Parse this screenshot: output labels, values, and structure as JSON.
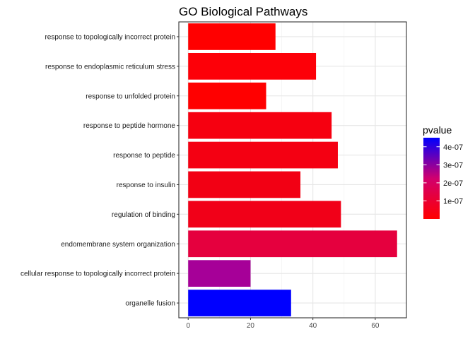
{
  "chart_data": {
    "type": "bar",
    "orientation": "horizontal",
    "title": "GO Biological Pathways",
    "xlabel": "",
    "ylabel": "",
    "xlim": [
      -3,
      70
    ],
    "x_ticks": [
      0,
      20,
      40,
      60
    ],
    "grid": true,
    "categories": [
      "response to topologically incorrect protein",
      "response to endoplasmic reticulum stress",
      "response to unfolded protein",
      "response to peptide hormone",
      "response to peptide",
      "response to insulin",
      "regulation of binding",
      "endomembrane system organization",
      "cellular response to topologically incorrect protein",
      "organelle fusion"
    ],
    "values": [
      28,
      41,
      25,
      46,
      48,
      36,
      49,
      67,
      20,
      33
    ],
    "pvalue": [
      1e-09,
      5e-09,
      1e-09,
      2e-08,
      2e-08,
      2e-08,
      3e-08,
      6e-08,
      3.1e-07,
      4.4e-07
    ],
    "bar_colors": [
      "#ff0000",
      "#fd0008",
      "#ff0000",
      "#f60010",
      "#f40012",
      "#f20014",
      "#f10018",
      "#e5003e",
      "#a60098",
      "#0000ff"
    ],
    "legend": {
      "title": "pvalue",
      "placement": "right",
      "type": "colorbar",
      "range": [
        0,
        4.5e-07
      ],
      "low_color": "#ff0000",
      "high_color": "#0000ff",
      "ticks": [
        {
          "value": 1e-07,
          "label": "1e-07"
        },
        {
          "value": 2e-07,
          "label": "2e-07"
        },
        {
          "value": 3e-07,
          "label": "3e-07"
        },
        {
          "value": 4e-07,
          "label": "4e-07"
        }
      ]
    }
  }
}
